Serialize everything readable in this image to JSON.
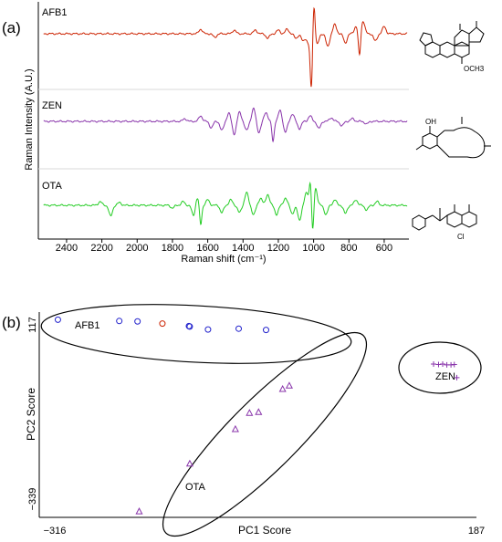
{
  "panel_a": {
    "label": "(a)",
    "ylabel": "Raman Intensity (A.U.)",
    "xlabel": "Raman shift (cm⁻¹)",
    "series_labels": [
      "AFB1",
      "ZEN",
      "OTA"
    ]
  },
  "panel_b": {
    "label": "(b)",
    "xlabel": "PC1 Score",
    "ylabel": "PC2 Score",
    "x_min_label": "−316",
    "x_max_label": "187",
    "y_min_label": "−339",
    "y_max_label": "117",
    "group_labels": {
      "afb1": "AFB1",
      "ota": "OTA",
      "zen": "ZEN"
    }
  },
  "chart_data": [
    {
      "type": "line",
      "title": "",
      "xlabel": "Raman shift (cm⁻¹)",
      "ylabel": "Raman Intensity (A.U.)",
      "x_reversed": true,
      "xlim": [
        2560,
        460
      ],
      "x_ticks": [
        2400,
        2200,
        2000,
        1800,
        1600,
        1400,
        1200,
        1000,
        800,
        600
      ],
      "grid": false,
      "series": [
        {
          "name": "AFB1",
          "color": "#cc2200",
          "peaks": [
            [
              1640,
              5
            ],
            [
              1560,
              -4
            ],
            [
              1450,
              4
            ],
            [
              1330,
              4
            ],
            [
              1260,
              -5
            ],
            [
              1200,
              4
            ],
            [
              1150,
              5
            ],
            [
              1100,
              -5
            ],
            [
              1060,
              -8
            ],
            [
              1030,
              -10
            ],
            [
              1013,
              -58
            ],
            [
              998,
              34
            ],
            [
              980,
              -12
            ],
            [
              920,
              -14
            ],
            [
              880,
              10
            ],
            [
              820,
              -10
            ],
            [
              760,
              8
            ],
            [
              740,
              -26
            ],
            [
              720,
              14
            ],
            [
              650,
              -8
            ],
            [
              600,
              8
            ]
          ]
        },
        {
          "name": "ZEN",
          "color": "#8833aa",
          "peaks": [
            [
              1730,
              3
            ],
            [
              1640,
              6
            ],
            [
              1580,
              -7
            ],
            [
              1520,
              -10
            ],
            [
              1480,
              9
            ],
            [
              1450,
              -14
            ],
            [
              1420,
              10
            ],
            [
              1380,
              -10
            ],
            [
              1340,
              14
            ],
            [
              1310,
              -12
            ],
            [
              1270,
              10
            ],
            [
              1230,
              -22
            ],
            [
              1190,
              12
            ],
            [
              1160,
              -12
            ],
            [
              1120,
              8
            ],
            [
              1080,
              -8
            ],
            [
              1020,
              6
            ],
            [
              970,
              -8
            ],
            [
              900,
              4
            ],
            [
              840,
              -5
            ],
            [
              780,
              3
            ],
            [
              700,
              -3
            ]
          ]
        },
        {
          "name": "OTA",
          "color": "#22cc22",
          "peaks": [
            [
              2210,
              4
            ],
            [
              2150,
              -12
            ],
            [
              2100,
              3
            ],
            [
              1800,
              -3
            ],
            [
              1740,
              4
            ],
            [
              1680,
              -12
            ],
            [
              1660,
              9
            ],
            [
              1640,
              -22
            ],
            [
              1600,
              6
            ],
            [
              1520,
              -8
            ],
            [
              1470,
              6
            ],
            [
              1420,
              -8
            ],
            [
              1380,
              14
            ],
            [
              1340,
              -10
            ],
            [
              1300,
              8
            ],
            [
              1260,
              12
            ],
            [
              1210,
              -10
            ],
            [
              1160,
              8
            ],
            [
              1120,
              -9
            ],
            [
              1080,
              -16
            ],
            [
              1040,
              14
            ],
            [
              1018,
              26
            ],
            [
              1005,
              -36
            ],
            [
              990,
              20
            ],
            [
              930,
              -10
            ],
            [
              880,
              6
            ],
            [
              820,
              -9
            ],
            [
              760,
              6
            ],
            [
              700,
              -5
            ],
            [
              640,
              4
            ]
          ]
        }
      ]
    },
    {
      "type": "scatter",
      "title": "",
      "xlabel": "PC1 Score",
      "ylabel": "PC2 Score",
      "xlim": [
        -316,
        187
      ],
      "ylim": [
        -339,
        117
      ],
      "grid": false,
      "series": [
        {
          "name": "AFB1",
          "marker": "circle",
          "color": "#2222cc",
          "points": [
            [
              -310,
              114
            ],
            [
              -236,
              111
            ],
            [
              -214,
              110
            ],
            [
              -152,
              99
            ],
            [
              -151,
              98
            ],
            [
              -129,
              91
            ],
            [
              -92,
              93
            ],
            [
              -59,
              90
            ]
          ]
        },
        {
          "name": "AFB1",
          "marker": "circle",
          "color": "#cc2200",
          "points": [
            [
              -184,
              105
            ]
          ]
        },
        {
          "name": "OTA",
          "marker": "triangle",
          "color": "#8833aa",
          "points": [
            [
              -212,
              -336
            ],
            [
              -151,
              -224
            ],
            [
              -96,
              -143
            ],
            [
              -79,
              -105
            ],
            [
              -68,
              -103
            ],
            [
              -39,
              -49
            ],
            [
              -31,
              -41
            ]
          ]
        },
        {
          "name": "ZEN",
          "marker": "plus",
          "color": "#8833aa",
          "points": [
            [
              143,
              10
            ],
            [
              149,
              9
            ],
            [
              154,
              10
            ],
            [
              159,
              8
            ],
            [
              164,
              8
            ],
            [
              168,
              9
            ],
            [
              171,
              -22
            ]
          ]
        }
      ]
    }
  ],
  "structures": [
    {
      "name": "AFB1",
      "label": "OCH3"
    },
    {
      "name": "ZEN",
      "label": "OH"
    },
    {
      "name": "OTA",
      "label": "Cl"
    }
  ]
}
